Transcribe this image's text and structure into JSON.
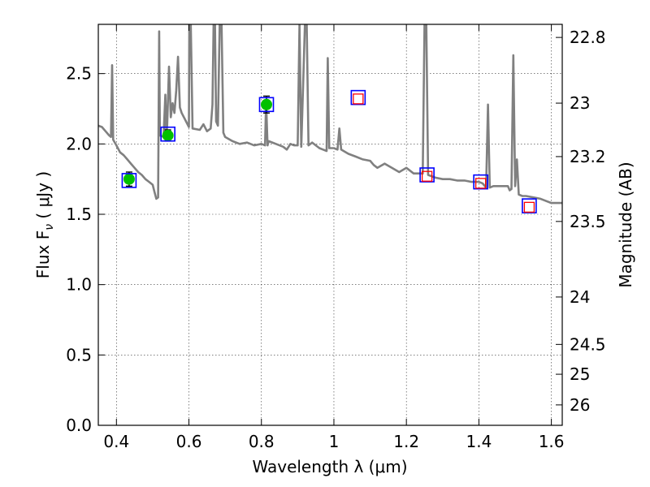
{
  "chart_data": {
    "type": "line",
    "xlabel": "Wavelength  λ (μm)",
    "ylabel": "Flux  F",
    "ylabel_sub": "ν",
    "ylabel_unit": " ( μJy )",
    "y2label": "Magnitude (AB)",
    "xlim": [
      0.35,
      1.63
    ],
    "ylim": [
      0.0,
      2.85
    ],
    "grid": true,
    "x_ticks": [
      0.4,
      0.6,
      0.8,
      1.0,
      1.2,
      1.4,
      1.6
    ],
    "x_tick_labels": [
      "0.4",
      "0.6",
      "0.8",
      "1",
      "1.2",
      "1.4",
      "1.6"
    ],
    "y_ticks": [
      0.0,
      0.5,
      1.0,
      1.5,
      2.0,
      2.5
    ],
    "y_tick_labels": [
      "0.0",
      "0.5",
      "1.0",
      "1.5",
      "2.0",
      "2.5"
    ],
    "y2_ticks": [
      {
        "label": "22.8",
        "flux": 2.757
      },
      {
        "label": "23",
        "flux": 2.29
      },
      {
        "label": "23.2",
        "flux": 1.91
      },
      {
        "label": "23.5",
        "flux": 1.449
      },
      {
        "label": "24",
        "flux": 0.912
      },
      {
        "label": "24.5",
        "flux": 0.575
      },
      {
        "label": "25",
        "flux": 0.363
      },
      {
        "label": "26",
        "flux": 0.145
      }
    ],
    "model_sed": {
      "color": "#808080",
      "points": [
        [
          0.35,
          2.13
        ],
        [
          0.36,
          2.12
        ],
        [
          0.37,
          2.09
        ],
        [
          0.38,
          2.06
        ],
        [
          0.385,
          2.05
        ],
        [
          0.388,
          2.56
        ],
        [
          0.391,
          2.03
        ],
        [
          0.4,
          1.99
        ],
        [
          0.41,
          1.94
        ],
        [
          0.42,
          1.92
        ],
        [
          0.43,
          1.89
        ],
        [
          0.44,
          1.86
        ],
        [
          0.45,
          1.83
        ],
        [
          0.46,
          1.8
        ],
        [
          0.47,
          1.78
        ],
        [
          0.48,
          1.75
        ],
        [
          0.49,
          1.73
        ],
        [
          0.5,
          1.71
        ],
        [
          0.505,
          1.66
        ],
        [
          0.51,
          1.61
        ],
        [
          0.515,
          1.62
        ],
        [
          0.518,
          2.8
        ],
        [
          0.52,
          2.06
        ],
        [
          0.53,
          2.05
        ],
        [
          0.535,
          2.35
        ],
        [
          0.538,
          2.05
        ],
        [
          0.54,
          2.14
        ],
        [
          0.545,
          2.55
        ],
        [
          0.55,
          2.19
        ],
        [
          0.555,
          2.29
        ],
        [
          0.56,
          2.22
        ],
        [
          0.565,
          2.38
        ],
        [
          0.57,
          2.62
        ],
        [
          0.575,
          2.26
        ],
        [
          0.58,
          2.22
        ],
        [
          0.59,
          2.17
        ],
        [
          0.6,
          2.12
        ],
        [
          0.601,
          2.85
        ],
        [
          0.605,
          2.85
        ],
        [
          0.61,
          2.11
        ],
        [
          0.63,
          2.1
        ],
        [
          0.64,
          2.14
        ],
        [
          0.65,
          2.09
        ],
        [
          0.66,
          2.11
        ],
        [
          0.665,
          2.28
        ],
        [
          0.668,
          2.85
        ],
        [
          0.672,
          2.85
        ],
        [
          0.675,
          2.16
        ],
        [
          0.68,
          2.13
        ],
        [
          0.685,
          2.85
        ],
        [
          0.69,
          2.85
        ],
        [
          0.695,
          2.08
        ],
        [
          0.7,
          2.05
        ],
        [
          0.72,
          2.02
        ],
        [
          0.74,
          2.0
        ],
        [
          0.76,
          2.01
        ],
        [
          0.78,
          1.99
        ],
        [
          0.8,
          2.0
        ],
        [
          0.81,
          1.99
        ],
        [
          0.813,
          2.3
        ],
        [
          0.817,
          1.99
        ],
        [
          0.82,
          2.02
        ],
        [
          0.84,
          2.0
        ],
        [
          0.86,
          1.98
        ],
        [
          0.87,
          1.96
        ],
        [
          0.88,
          2.0
        ],
        [
          0.89,
          1.99
        ],
        [
          0.9,
          1.99
        ],
        [
          0.905,
          2.85
        ],
        [
          0.91,
          1.98
        ],
        [
          0.92,
          2.85
        ],
        [
          0.925,
          2.85
        ],
        [
          0.93,
          1.99
        ],
        [
          0.94,
          2.01
        ],
        [
          0.95,
          1.99
        ],
        [
          0.96,
          1.97
        ],
        [
          0.97,
          1.96
        ],
        [
          0.98,
          1.95
        ],
        [
          0.983,
          2.61
        ],
        [
          0.987,
          1.97
        ],
        [
          1.0,
          1.97
        ],
        [
          1.01,
          1.96
        ],
        [
          1.015,
          2.11
        ],
        [
          1.02,
          1.96
        ],
        [
          1.04,
          1.93
        ],
        [
          1.06,
          1.91
        ],
        [
          1.08,
          1.89
        ],
        [
          1.1,
          1.88
        ],
        [
          1.11,
          1.85
        ],
        [
          1.12,
          1.83
        ],
        [
          1.14,
          1.86
        ],
        [
          1.16,
          1.83
        ],
        [
          1.18,
          1.8
        ],
        [
          1.2,
          1.83
        ],
        [
          1.22,
          1.79
        ],
        [
          1.245,
          1.79
        ],
        [
          1.25,
          2.85
        ],
        [
          1.255,
          2.85
        ],
        [
          1.26,
          1.78
        ],
        [
          1.28,
          1.76
        ],
        [
          1.3,
          1.75
        ],
        [
          1.32,
          1.75
        ],
        [
          1.34,
          1.74
        ],
        [
          1.36,
          1.74
        ],
        [
          1.38,
          1.73
        ],
        [
          1.4,
          1.73
        ],
        [
          1.41,
          1.72
        ],
        [
          1.42,
          1.69
        ],
        [
          1.425,
          2.28
        ],
        [
          1.43,
          1.69
        ],
        [
          1.44,
          1.7
        ],
        [
          1.46,
          1.7
        ],
        [
          1.48,
          1.7
        ],
        [
          1.485,
          1.67
        ],
        [
          1.49,
          1.68
        ],
        [
          1.495,
          2.63
        ],
        [
          1.5,
          1.7
        ],
        [
          1.505,
          1.89
        ],
        [
          1.51,
          1.64
        ],
        [
          1.52,
          1.63
        ],
        [
          1.53,
          1.63
        ],
        [
          1.55,
          1.62
        ],
        [
          1.57,
          1.61
        ],
        [
          1.58,
          1.6
        ],
        [
          1.6,
          1.58
        ],
        [
          1.63,
          1.58
        ]
      ]
    },
    "series": [
      {
        "marker": "circle",
        "color": "#00c000",
        "points": [
          {
            "x": 0.435,
            "y": 1.75,
            "err": 0.05
          },
          {
            "x": 0.542,
            "y": 2.06,
            "err": 0.04
          },
          {
            "x": 0.814,
            "y": 2.28,
            "err": 0.06
          }
        ]
      },
      {
        "marker": "square-open",
        "color": "#0000ff",
        "points": [
          {
            "x": 0.435,
            "y": 1.74
          },
          {
            "x": 0.542,
            "y": 2.07
          },
          {
            "x": 0.814,
            "y": 2.28
          },
          {
            "x": 1.067,
            "y": 2.33
          },
          {
            "x": 1.257,
            "y": 1.78
          },
          {
            "x": 1.405,
            "y": 1.73
          },
          {
            "x": 1.539,
            "y": 1.56
          }
        ]
      },
      {
        "marker": "square-open",
        "color": "#ff0000",
        "points": [
          {
            "x": 1.067,
            "y": 2.32
          },
          {
            "x": 1.257,
            "y": 1.77
          },
          {
            "x": 1.405,
            "y": 1.72
          },
          {
            "x": 1.539,
            "y": 1.55
          }
        ]
      }
    ]
  }
}
